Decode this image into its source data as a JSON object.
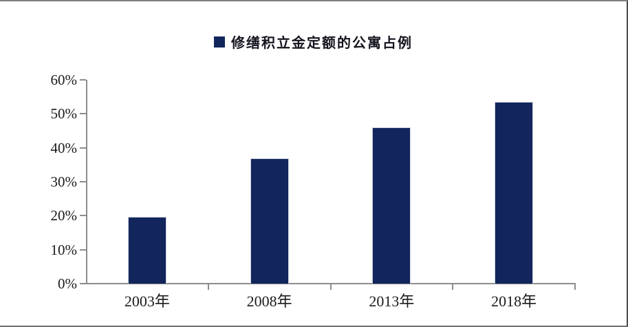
{
  "legend": {
    "label": "修缮积立金定额的公寓占例",
    "swatch_color": "#12255c"
  },
  "chart_data": {
    "type": "bar",
    "title": "修缮积立金定额的公寓占例",
    "categories": [
      "2003年",
      "2008年",
      "2013年",
      "2018年"
    ],
    "values": [
      19.6,
      36.8,
      46.0,
      53.5
    ],
    "unit": "%",
    "ylim": [
      0,
      60
    ],
    "ytick_values": [
      0,
      10,
      20,
      30,
      40,
      50,
      60
    ],
    "ytick_labels": [
      "0%",
      "10%",
      "20%",
      "30%",
      "40%",
      "50%",
      "60%"
    ],
    "xlabel": "",
    "ylabel": "",
    "grid": false,
    "legend_position": "top-center",
    "bar_color": "#12255c",
    "axis_color": "#8c8c8c",
    "background_color": "#ffffff",
    "frame_border_color": "#7f7f7f"
  }
}
